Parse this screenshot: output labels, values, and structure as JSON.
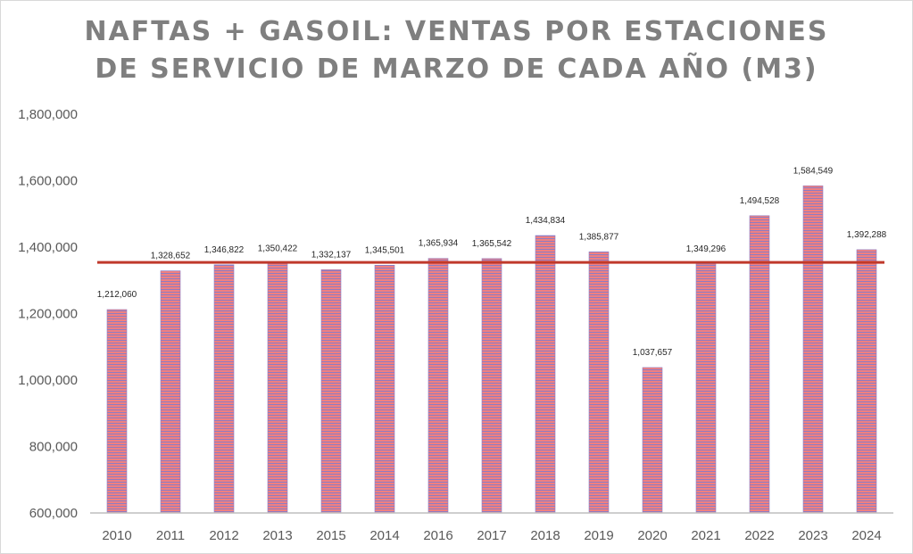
{
  "chart_data": {
    "type": "bar",
    "title_lines": [
      "NAFTAS + GASOIL: VENTAS POR ESTACIONES",
      "DE SERVICIO DE MARZO DE CADA AÑO (M3)"
    ],
    "xlabel": "",
    "ylabel": "",
    "categories": [
      "2010",
      "2011",
      "2012",
      "2013",
      "2015",
      "2014",
      "2016",
      "2017",
      "2018",
      "2019",
      "2020",
      "2021",
      "2022",
      "2023",
      "2024"
    ],
    "values": [
      1212060,
      1328652,
      1346822,
      1350422,
      1332137,
      1345501,
      1365934,
      1365542,
      1434834,
      1385877,
      1037657,
      1349296,
      1494528,
      1584549,
      1392288
    ],
    "data_labels": [
      "1,212,060",
      "1,328,652",
      "1,346,822",
      "1,350,422",
      "1,332,137",
      "1,345,501",
      "1,365,934",
      "1,365,542",
      "1,434,834",
      "1,385,877",
      "1,037,657",
      "1,349,296",
      "1,494,528",
      "1,584,549",
      "1,392,288"
    ],
    "ylim": [
      600000,
      1800000
    ],
    "yticks": [
      600000,
      800000,
      1000000,
      1200000,
      1400000,
      1600000,
      1800000
    ],
    "ytick_labels": [
      "600,000",
      "800,000",
      "1,000,000",
      "1,200,000",
      "1,400,000",
      "1,600,000",
      "1,800,000"
    ],
    "reference_line_value": 1354000,
    "grid": false,
    "legend": "none",
    "colors": {
      "bar_stripe_a": "#f08080",
      "bar_stripe_b": "#8e7cc3",
      "reference_line": "#c0392b",
      "axis": "#bfbfbf",
      "title": "#7f7f7f"
    }
  }
}
